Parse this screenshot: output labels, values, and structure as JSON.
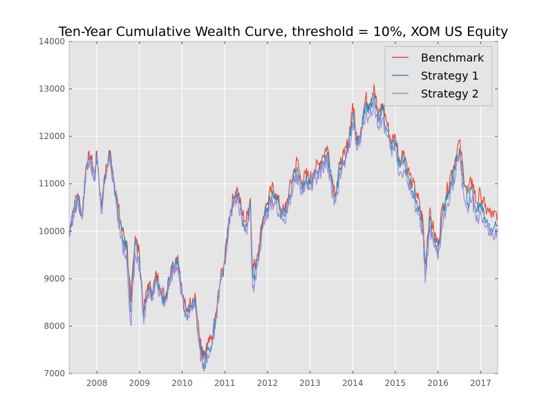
{
  "chart_data": {
    "type": "line",
    "title": "Ten-Year Cumulative Wealth Curve, threshold = 10%, XOM US Equity",
    "xlabel": "",
    "ylabel": "",
    "xlim": [
      2007.35,
      2017.4
    ],
    "ylim": [
      7000,
      14000
    ],
    "x_ticks": [
      2008,
      2009,
      2010,
      2011,
      2012,
      2013,
      2014,
      2015,
      2016,
      2017
    ],
    "x_tick_labels": [
      "2008",
      "2009",
      "2010",
      "2011",
      "2012",
      "2013",
      "2014",
      "2015",
      "2016",
      "2017"
    ],
    "y_ticks": [
      7000,
      8000,
      9000,
      10000,
      11000,
      12000,
      13000,
      14000
    ],
    "y_tick_labels": [
      "7000",
      "8000",
      "9000",
      "10000",
      "11000",
      "12000",
      "13000",
      "14000"
    ],
    "grid": true,
    "legend_position": "top-right",
    "x": [
      2007.35,
      2007.45,
      2007.55,
      2007.65,
      2007.75,
      2007.85,
      2007.95,
      2008.0,
      2008.1,
      2008.2,
      2008.3,
      2008.4,
      2008.5,
      2008.6,
      2008.7,
      2008.8,
      2008.85,
      2008.9,
      2009.0,
      2009.1,
      2009.2,
      2009.3,
      2009.4,
      2009.5,
      2009.6,
      2009.7,
      2009.8,
      2009.9,
      2010.0,
      2010.1,
      2010.2,
      2010.3,
      2010.4,
      2010.45,
      2010.5,
      2010.6,
      2010.7,
      2010.8,
      2010.9,
      2011.0,
      2011.1,
      2011.2,
      2011.3,
      2011.4,
      2011.5,
      2011.6,
      2011.65,
      2011.7,
      2011.8,
      2011.9,
      2012.0,
      2012.1,
      2012.2,
      2012.3,
      2012.4,
      2012.5,
      2012.6,
      2012.7,
      2012.8,
      2012.9,
      2013.0,
      2013.1,
      2013.2,
      2013.3,
      2013.4,
      2013.5,
      2013.6,
      2013.7,
      2013.8,
      2013.9,
      2014.0,
      2014.1,
      2014.2,
      2014.3,
      2014.4,
      2014.5,
      2014.6,
      2014.7,
      2014.8,
      2014.9,
      2015.0,
      2015.1,
      2015.2,
      2015.3,
      2015.4,
      2015.5,
      2015.6,
      2015.65,
      2015.7,
      2015.8,
      2015.9,
      2016.0,
      2016.1,
      2016.2,
      2016.3,
      2016.4,
      2016.5,
      2016.6,
      2016.7,
      2016.8,
      2016.9,
      2017.0,
      2017.1,
      2017.2,
      2017.3,
      2017.4
    ],
    "series": [
      {
        "name": "Benchmark",
        "color": "#e24a33",
        "values": [
          10000,
          10450,
          10800,
          10300,
          11400,
          11600,
          11150,
          11700,
          10500,
          11200,
          11700,
          11100,
          10500,
          10000,
          9800,
          8500,
          9300,
          9900,
          9500,
          8300,
          8900,
          8700,
          9100,
          8800,
          8600,
          9000,
          9300,
          9500,
          8700,
          8300,
          8500,
          8700,
          7800,
          7500,
          7300,
          7600,
          7700,
          8300,
          9000,
          9400,
          10300,
          10700,
          10900,
          10400,
          10200,
          10700,
          9200,
          9300,
          9700,
          10300,
          10600,
          10900,
          10800,
          10500,
          10400,
          10800,
          11200,
          11500,
          11000,
          11200,
          11100,
          11300,
          11400,
          11600,
          11800,
          11200,
          10800,
          11400,
          11600,
          11900,
          12700,
          11900,
          12200,
          12800,
          12700,
          13100,
          12400,
          12700,
          12300,
          11900,
          12000,
          11500,
          11700,
          11300,
          11000,
          10800,
          10400,
          10200,
          9300,
          10400,
          10000,
          9700,
          10500,
          10800,
          11200,
          11500,
          11900,
          11200,
          10800,
          11100,
          10600,
          10800,
          10500,
          10400,
          10300,
          10400
        ]
      },
      {
        "name": "Strategy 1",
        "color": "#348abd",
        "values": [
          10000,
          10400,
          10700,
          10300,
          11350,
          11550,
          11100,
          11650,
          10450,
          11150,
          11650,
          11050,
          10350,
          9850,
          9600,
          8300,
          9100,
          9700,
          9350,
          8200,
          8800,
          8650,
          9000,
          8700,
          8550,
          8950,
          9250,
          9400,
          8650,
          8250,
          8450,
          8600,
          7700,
          7400,
          7200,
          7500,
          7650,
          8250,
          8950,
          9350,
          10250,
          10600,
          10800,
          10300,
          10100,
          10600,
          9000,
          9100,
          9550,
          10200,
          10500,
          10750,
          10700,
          10400,
          10300,
          10700,
          11050,
          11350,
          10900,
          11100,
          11000,
          11200,
          11250,
          11450,
          11650,
          11050,
          10700,
          11300,
          11500,
          11800,
          12500,
          11800,
          12100,
          12650,
          12550,
          12900,
          12300,
          12550,
          12150,
          11800,
          11850,
          11350,
          11500,
          11150,
          10850,
          10650,
          10250,
          10050,
          9100,
          10200,
          9850,
          9550,
          10300,
          10650,
          11050,
          11300,
          11750,
          11000,
          10600,
          10900,
          10400,
          10600,
          10300,
          10150,
          10050,
          10150
        ]
      },
      {
        "name": "Strategy 2",
        "color": "#988ed5",
        "values": [
          10000,
          10350,
          10650,
          10250,
          11300,
          11500,
          11050,
          11600,
          10400,
          11100,
          11600,
          11000,
          10250,
          9700,
          9400,
          8000,
          8900,
          9500,
          9200,
          8050,
          8700,
          8600,
          8900,
          8650,
          8500,
          8900,
          9200,
          9300,
          8600,
          8200,
          8400,
          8500,
          7600,
          7300,
          7100,
          7400,
          7600,
          8200,
          8900,
          9300,
          10200,
          10500,
          10700,
          10200,
          10000,
          10500,
          8800,
          8900,
          9400,
          10100,
          10400,
          10600,
          10600,
          10300,
          10200,
          10600,
          10900,
          11200,
          10800,
          11000,
          10900,
          11100,
          11100,
          11300,
          11500,
          10900,
          10600,
          11200,
          11400,
          11700,
          12300,
          11700,
          12000,
          12500,
          12400,
          12700,
          12200,
          12400,
          12000,
          11700,
          11700,
          11200,
          11300,
          11000,
          10700,
          10500,
          10100,
          9900,
          8900,
          10000,
          9700,
          9400,
          10100,
          10500,
          10900,
          11100,
          11600,
          10800,
          10400,
          10700,
          10200,
          10400,
          10100,
          9950,
          9850,
          9950
        ]
      }
    ]
  }
}
